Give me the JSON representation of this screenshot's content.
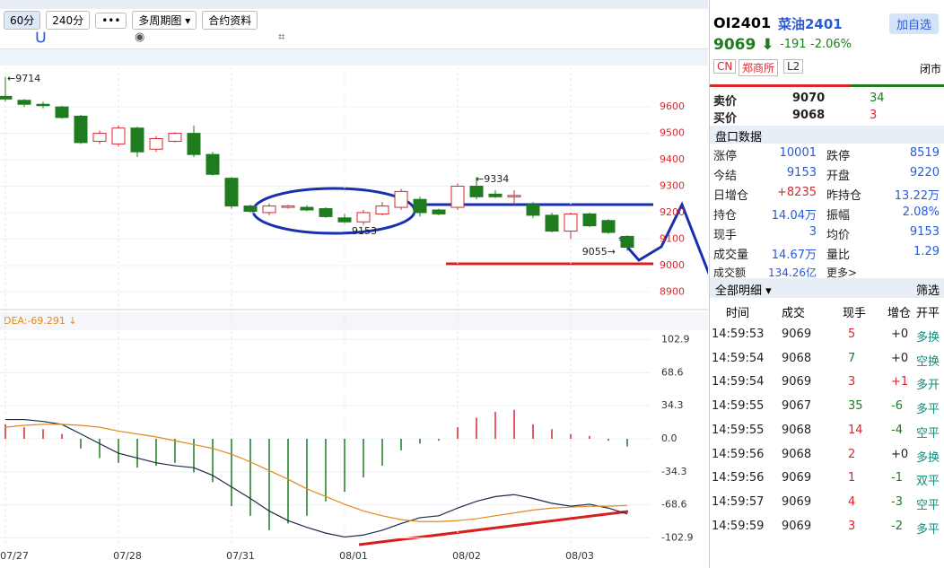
{
  "toolbar": {
    "buttons": [
      "60分",
      "240分",
      "•••",
      "多周期图 ▾",
      "合约资料"
    ]
  },
  "chart_data": [
    {
      "type": "candlestick",
      "categories": [
        "07/27",
        null,
        null,
        null,
        null,
        null,
        "07/28",
        null,
        null,
        null,
        null,
        null,
        "07/31",
        null,
        null,
        null,
        null,
        null,
        "08/01",
        null,
        null,
        null,
        null,
        null,
        "08/02",
        null,
        null,
        null,
        null,
        null,
        "08/03",
        null,
        null,
        null
      ],
      "open": [
        9640,
        9625,
        9610,
        9600,
        9565,
        9470,
        9460,
        9520,
        9440,
        9470,
        9500,
        9420,
        9330,
        9225,
        9200,
        9220,
        9220,
        9215,
        9180,
        9165,
        9195,
        9220,
        9250,
        9210,
        9220,
        9300,
        9270,
        9260,
        9230,
        9190,
        9130,
        9195,
        9170,
        9110
      ],
      "high": [
        9714,
        9630,
        9620,
        9605,
        9570,
        9510,
        9530,
        9525,
        9490,
        9505,
        9530,
        9430,
        9335,
        9230,
        9235,
        9230,
        9228,
        9220,
        9195,
        9210,
        9240,
        9290,
        9260,
        9215,
        9310,
        9334,
        9285,
        9285,
        9240,
        9200,
        9200,
        9200,
        9175,
        9115
      ],
      "low": [
        9620,
        9600,
        9595,
        9555,
        9460,
        9460,
        9450,
        9410,
        9430,
        9465,
        9410,
        9340,
        9215,
        9200,
        9190,
        9215,
        9205,
        9180,
        9160,
        9153,
        9190,
        9210,
        9185,
        9190,
        9210,
        9250,
        9255,
        9230,
        9180,
        9125,
        9100,
        9145,
        9120,
        9055
      ],
      "close": [
        9630,
        9610,
        9605,
        9560,
        9465,
        9500,
        9520,
        9430,
        9480,
        9500,
        9420,
        9345,
        9225,
        9205,
        9225,
        9225,
        9210,
        9185,
        9165,
        9200,
        9225,
        9280,
        9200,
        9195,
        9300,
        9260,
        9260,
        9265,
        9190,
        9130,
        9195,
        9150,
        9125,
        9069
      ],
      "up_color": "#d9262d",
      "down_color": "#1e7b1e",
      "ylim": [
        8850,
        9750
      ],
      "yticks": [
        8900,
        9000,
        9100,
        9200,
        9300,
        9400,
        9500,
        9600
      ],
      "annotations": [
        "←9714",
        "←9334",
        "9153",
        "9055→"
      ]
    },
    {
      "type": "macd",
      "title": "DEA:-69.291 ↓",
      "histogram": [
        15,
        12,
        10,
        5,
        -10,
        -20,
        -25,
        -30,
        -28,
        -25,
        -35,
        -45,
        -70,
        -80,
        -95,
        -88,
        -80,
        -65,
        -55,
        -40,
        -28,
        -12,
        -5,
        -2,
        12,
        22,
        28,
        30,
        15,
        10,
        5,
        3,
        -2,
        -8
      ],
      "dif": [
        20,
        20,
        18,
        15,
        5,
        -5,
        -15,
        -20,
        -25,
        -28,
        -30,
        -38,
        -50,
        -62,
        -75,
        -85,
        -92,
        -98,
        -102,
        -100,
        -95,
        -88,
        -82,
        -80,
        -72,
        -65,
        -60,
        -58,
        -62,
        -67,
        -70,
        -68,
        -72,
        -78
      ],
      "dea": [
        12,
        14,
        15,
        15,
        14,
        12,
        8,
        5,
        2,
        -2,
        -6,
        -10,
        -16,
        -24,
        -33,
        -42,
        -52,
        -60,
        -68,
        -75,
        -80,
        -84,
        -86,
        -86,
        -85,
        -83,
        -80,
        -77,
        -74,
        -72,
        -71,
        -70,
        -70,
        -69.291
      ],
      "dif_color": "#1b2a4a",
      "dea_color": "#e08a1e",
      "ylim": [
        -110,
        110
      ],
      "yticks": [
        {
          "value": 102.9,
          "label": "102.9"
        },
        {
          "value": 68.6,
          "label": "68.6"
        },
        {
          "value": 34.3,
          "label": "34.3"
        },
        {
          "value": 0,
          "label": "0.0"
        },
        {
          "value": -34.3,
          "label": "-34.3"
        },
        {
          "value": -68.6,
          "label": "-68.6"
        },
        {
          "value": -102.9,
          "label": "-102.9"
        }
      ]
    }
  ],
  "quote": {
    "code": "OI2401",
    "name": "菜油2401",
    "add_button": "加自选",
    "price": "9069 ⬇",
    "change": "-191",
    "change_pct": "-2.06%",
    "tags": [
      "CN",
      "郑商所",
      "L2"
    ],
    "status": "闭市",
    "ask": [
      "卖价",
      "9070",
      "34"
    ],
    "bid": [
      "买价",
      "9068",
      "3"
    ],
    "section": "盘口数据",
    "stats": [
      [
        "涨停",
        "10001",
        "跌停",
        "8519"
      ],
      [
        "今结",
        "9153",
        "开盘",
        "9220"
      ],
      [
        "日增仓",
        "+8235",
        "昨持仓",
        "13.22万"
      ],
      [
        "持仓",
        "14.04万",
        "振幅",
        "2.08%"
      ],
      [
        "现手",
        "3",
        "均价",
        "9153"
      ],
      [
        "成交量",
        "14.67万",
        "量比",
        "1.29"
      ],
      [
        "成交额",
        "134.26亿",
        "更多>",
        ""
      ]
    ]
  },
  "details": {
    "title": "全部明细 ▾",
    "filter": "筛选",
    "headers": [
      "时间",
      "成交",
      "现手",
      "增仓",
      "开平"
    ],
    "rows": [
      [
        "14:59:53",
        "9069",
        "5",
        "+0",
        "多换"
      ],
      [
        "14:59:54",
        "9068",
        "7",
        "+0",
        "空换"
      ],
      [
        "14:59:54",
        "9069",
        "3",
        "+1",
        "多开"
      ],
      [
        "14:59:55",
        "9067",
        "35",
        "-6",
        "多平"
      ],
      [
        "14:59:55",
        "9068",
        "14",
        "-4",
        "空平"
      ],
      [
        "14:59:56",
        "9068",
        "2",
        "+0",
        "多换"
      ],
      [
        "14:59:56",
        "9069",
        "1",
        "-1",
        "双平"
      ],
      [
        "14:59:57",
        "9069",
        "4",
        "-3",
        "空平"
      ],
      [
        "14:59:59",
        "9069",
        "3",
        "-2",
        "多平"
      ]
    ]
  }
}
